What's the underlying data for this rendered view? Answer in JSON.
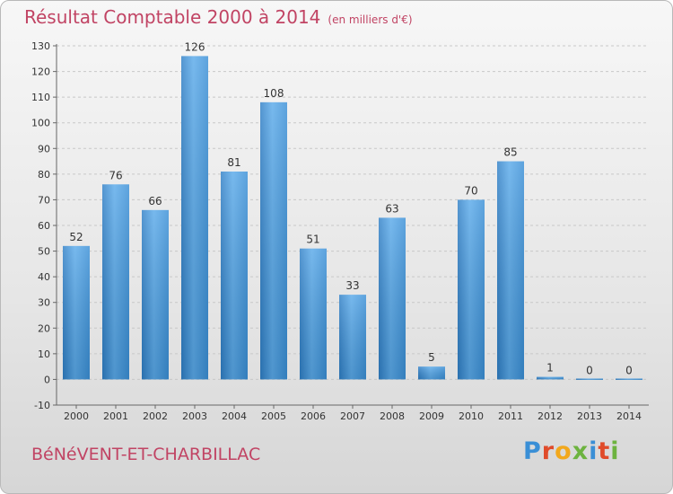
{
  "header": {
    "title": "Résultat Comptable 2000 à 2014",
    "subtitle": "(en milliers d'€)"
  },
  "footer": {
    "commune": "BéNéVENT-ET-CHARBILLAC",
    "logo_letters": [
      "P",
      "r",
      "o",
      "x",
      "i",
      "t",
      "i"
    ]
  },
  "colors": {
    "bar": "#3a8fd6",
    "title": "#c14464"
  },
  "chart_data": {
    "type": "bar",
    "title": "Résultat Comptable 2000 à 2014",
    "subtitle": "(en milliers d'€)",
    "categories": [
      "2000",
      "2001",
      "2002",
      "2003",
      "2004",
      "2005",
      "2006",
      "2007",
      "2008",
      "2009",
      "2010",
      "2011",
      "2012",
      "2013",
      "2014"
    ],
    "values": [
      52,
      76,
      66,
      126,
      81,
      108,
      51,
      33,
      63,
      5,
      70,
      85,
      1,
      0,
      0
    ],
    "ylim": [
      -10,
      130
    ],
    "yticks": [
      -10,
      0,
      10,
      20,
      30,
      40,
      50,
      60,
      70,
      80,
      90,
      100,
      110,
      120,
      130
    ],
    "grid": true
  }
}
